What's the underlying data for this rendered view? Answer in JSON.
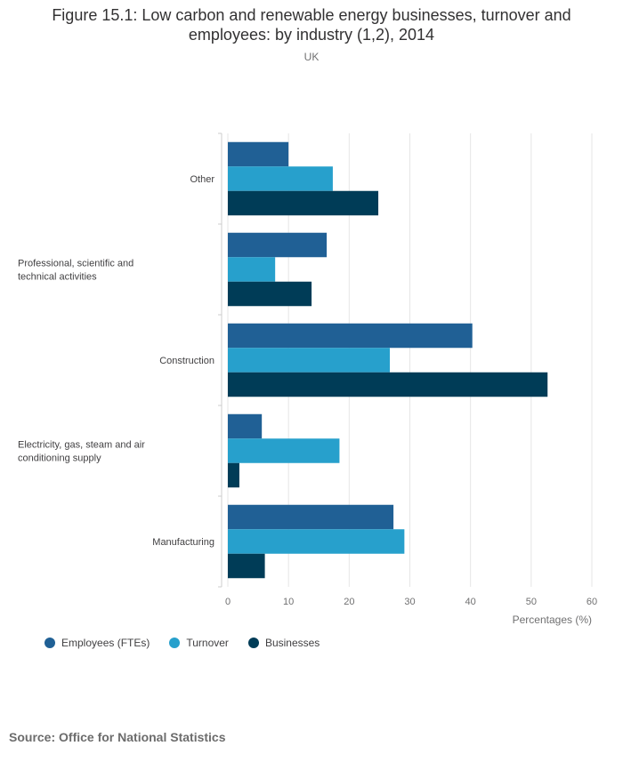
{
  "chart_data": {
    "type": "bar",
    "orientation": "horizontal",
    "title": "Figure 15.1: Low carbon and renewable energy businesses, turnover and employees: by industry (1,2), 2014",
    "subtitle": "UK",
    "categories": [
      "Other",
      "Professional, scientific and technical activities",
      "Construction",
      "Electricity, gas, steam and air conditioning supply",
      "Manufacturing"
    ],
    "series": [
      {
        "name": "Employees (FTEs)",
        "color": "#206095",
        "values": [
          10.0,
          16.3,
          40.3,
          5.6,
          27.3
        ]
      },
      {
        "name": "Turnover",
        "color": "#27a0cc",
        "values": [
          17.3,
          7.8,
          26.7,
          18.4,
          29.1
        ]
      },
      {
        "name": "Businesses",
        "color": "#003c57",
        "values": [
          24.8,
          13.8,
          52.7,
          1.9,
          6.1
        ]
      }
    ],
    "xlabel": "Percentages (%)",
    "ylabel": "",
    "xlim": [
      0,
      60
    ],
    "xticks": [
      0,
      10,
      20,
      30,
      40,
      50,
      60
    ],
    "grid": true,
    "legend": "bottom-left"
  },
  "footer": {
    "source": "Source: Office for National Statistics"
  }
}
